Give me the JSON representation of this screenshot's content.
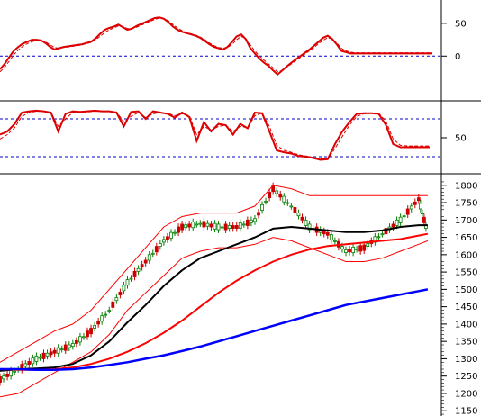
{
  "chart_data": [
    {
      "type": "line",
      "panel": "upper-oscillator",
      "yticks": [
        50,
        0
      ],
      "ylim": [
        -60,
        80
      ],
      "reference_lines": [
        0
      ],
      "grid": false,
      "legend": "none",
      "x": [
        0,
        5,
        10,
        15,
        20,
        25,
        30,
        35,
        40,
        45,
        50,
        55,
        60,
        65,
        70,
        75,
        80,
        85,
        90,
        95,
        100,
        105,
        110,
        115,
        120,
        125,
        130,
        135,
        140,
        145,
        150,
        155,
        160,
        165,
        170,
        175,
        180,
        185,
        190,
        195,
        200,
        205,
        210,
        215,
        220,
        225,
        230,
        235,
        240,
        245,
        250,
        255,
        260,
        265,
        270,
        275,
        280,
        285,
        290,
        295,
        300,
        305,
        310,
        315,
        320,
        325,
        330,
        335,
        340,
        345,
        350,
        355,
        360,
        365,
        370,
        375,
        380,
        385,
        390,
        395,
        400,
        405,
        410,
        415,
        420,
        425,
        430,
        435,
        440,
        445,
        450,
        455,
        460,
        465,
        470,
        475
      ],
      "series": [
        {
          "values": [
            -20,
            -12,
            -2,
            8,
            14,
            19,
            22,
            25,
            25,
            24,
            20,
            14,
            10,
            12,
            14,
            15,
            16,
            17,
            18,
            20,
            22,
            27,
            34,
            40,
            43,
            45,
            48,
            44,
            40,
            42,
            46,
            49,
            52,
            55,
            58,
            59,
            57,
            52,
            45,
            40,
            37,
            35,
            33,
            31,
            28,
            23,
            18,
            14,
            12,
            10,
            14,
            22,
            30,
            33,
            26,
            12,
            4,
            -4,
            -10,
            -15,
            -22,
            -28,
            -22,
            -16,
            -10,
            -5,
            0,
            5,
            10,
            16,
            22,
            28,
            31,
            26,
            18,
            8,
            6,
            4,
            4,
            4,
            4,
            4,
            4,
            4,
            4,
            4,
            4,
            4,
            4,
            4,
            4,
            4,
            4,
            4,
            4,
            4
          ],
          "color": "#dd0000",
          "style": "solid"
        },
        {
          "values": [
            -24,
            -17,
            -8,
            2,
            9,
            15,
            19,
            22,
            24,
            24,
            22,
            17,
            13,
            12,
            13,
            14,
            15,
            16,
            17,
            19,
            21,
            25,
            30,
            36,
            40,
            43,
            46,
            45,
            42,
            42,
            44,
            47,
            50,
            53,
            56,
            58,
            57,
            54,
            48,
            43,
            39,
            36,
            34,
            32,
            29,
            25,
            20,
            16,
            13,
            12,
            13,
            18,
            25,
            30,
            27,
            17,
            8,
            0,
            -6,
            -12,
            -18,
            -24,
            -22,
            -17,
            -12,
            -7,
            -2,
            3,
            8,
            13,
            19,
            24,
            28,
            26,
            20,
            12,
            8,
            6,
            5,
            5,
            5,
            5,
            5,
            5,
            5,
            5,
            5,
            5,
            5,
            5,
            5,
            5,
            5,
            5,
            5,
            5
          ],
          "color": "#dd0000",
          "style": "dashed"
        }
      ]
    },
    {
      "type": "line",
      "panel": "middle-oscillator",
      "yticks": [
        50
      ],
      "ylim": [
        0,
        100
      ],
      "reference_lines": [
        80,
        20
      ],
      "grid": false,
      "legend": "none",
      "x": [
        0,
        8,
        16,
        24,
        32,
        40,
        48,
        56,
        64,
        72,
        80,
        88,
        96,
        104,
        112,
        120,
        128,
        136,
        144,
        152,
        160,
        168,
        176,
        184,
        192,
        200,
        208,
        216,
        224,
        232,
        240,
        248,
        256,
        264,
        272,
        280,
        288,
        296,
        304,
        312,
        320,
        328,
        336,
        344,
        352,
        360,
        368,
        376,
        384,
        392,
        400,
        408,
        416,
        424,
        432,
        440,
        448,
        456,
        464,
        472
      ],
      "series": [
        {
          "values": [
            55,
            60,
            72,
            90,
            92,
            93,
            92,
            90,
            60,
            88,
            92,
            91,
            92,
            93,
            92,
            92,
            90,
            68,
            91,
            92,
            80,
            92,
            90,
            88,
            82,
            90,
            83,
            45,
            75,
            60,
            72,
            70,
            55,
            72,
            65,
            90,
            89,
            60,
            30,
            27,
            25,
            21,
            20,
            18,
            15,
            16,
            40,
            60,
            75,
            88,
            89,
            89,
            88,
            70,
            40,
            35,
            35,
            35,
            35,
            35
          ],
          "color": "#dd0000",
          "style": "solid"
        },
        {
          "values": [
            48,
            55,
            66,
            84,
            90,
            92,
            92,
            90,
            68,
            80,
            90,
            91,
            91,
            92,
            92,
            92,
            91,
            75,
            84,
            90,
            82,
            88,
            90,
            89,
            85,
            88,
            85,
            55,
            68,
            62,
            68,
            70,
            60,
            68,
            66,
            85,
            89,
            68,
            38,
            30,
            27,
            23,
            21,
            19,
            17,
            16,
            33,
            52,
            70,
            84,
            88,
            89,
            89,
            76,
            48,
            38,
            37,
            37,
            37,
            37
          ],
          "color": "#dd0000",
          "style": "dashed"
        }
      ]
    },
    {
      "type": "line",
      "panel": "price",
      "yticks": [
        1800,
        1750,
        1700,
        1650,
        1600,
        1550,
        1500,
        1450,
        1400,
        1350,
        1300,
        1250,
        1200,
        1150
      ],
      "ylim": [
        1135,
        1815
      ],
      "grid": false,
      "legend": "none",
      "x": [
        0,
        20,
        40,
        60,
        80,
        100,
        120,
        140,
        160,
        180,
        200,
        220,
        240,
        260,
        280,
        300,
        320,
        340,
        360,
        380,
        400,
        420,
        440,
        460,
        470
      ],
      "series": [
        {
          "values": [
            1240,
            1270,
            1300,
            1320,
            1340,
            1380,
            1440,
            1520,
            1580,
            1640,
            1680,
            1690,
            1680,
            1680,
            1700,
            1790,
            1740,
            1680,
            1660,
            1610,
            1620,
            1660,
            1700,
            1760,
            1660
          ],
          "color": "#008000",
          "style": "candles"
        },
        {
          "values": [
            1290,
            1320,
            1350,
            1380,
            1400,
            1440,
            1500,
            1560,
            1620,
            1680,
            1710,
            1720,
            1720,
            1720,
            1740,
            1800,
            1790,
            1770,
            1770,
            1770,
            1770,
            1770,
            1770,
            1770,
            1770
          ],
          "color": "#ff0000",
          "style": "band-upper"
        },
        {
          "values": [
            1190,
            1200,
            1230,
            1260,
            1290,
            1320,
            1370,
            1440,
            1490,
            1540,
            1590,
            1610,
            1620,
            1620,
            1630,
            1650,
            1640,
            1620,
            1600,
            1580,
            1580,
            1590,
            1610,
            1630,
            1640
          ],
          "color": "#ff0000",
          "style": "band-lower"
        },
        {
          "values": [
            1265,
            1270,
            1272,
            1275,
            1285,
            1310,
            1350,
            1405,
            1455,
            1510,
            1555,
            1590,
            1610,
            1630,
            1650,
            1675,
            1680,
            1675,
            1670,
            1665,
            1665,
            1670,
            1680,
            1685,
            1685
          ],
          "color": "#000000",
          "style": "solid"
        },
        {
          "values": [
            1270,
            1268,
            1268,
            1270,
            1275,
            1285,
            1300,
            1320,
            1345,
            1375,
            1410,
            1450,
            1490,
            1525,
            1555,
            1580,
            1600,
            1615,
            1625,
            1630,
            1635,
            1640,
            1645,
            1655,
            1660
          ],
          "color": "#ff0000",
          "style": "solid"
        },
        {
          "values": [
            1270,
            1270,
            1268,
            1268,
            1270,
            1275,
            1282,
            1290,
            1300,
            1310,
            1322,
            1335,
            1350,
            1365,
            1380,
            1395,
            1410,
            1425,
            1440,
            1455,
            1465,
            1475,
            1485,
            1495,
            1500
          ],
          "color": "#0000ff",
          "style": "solid"
        }
      ]
    }
  ]
}
